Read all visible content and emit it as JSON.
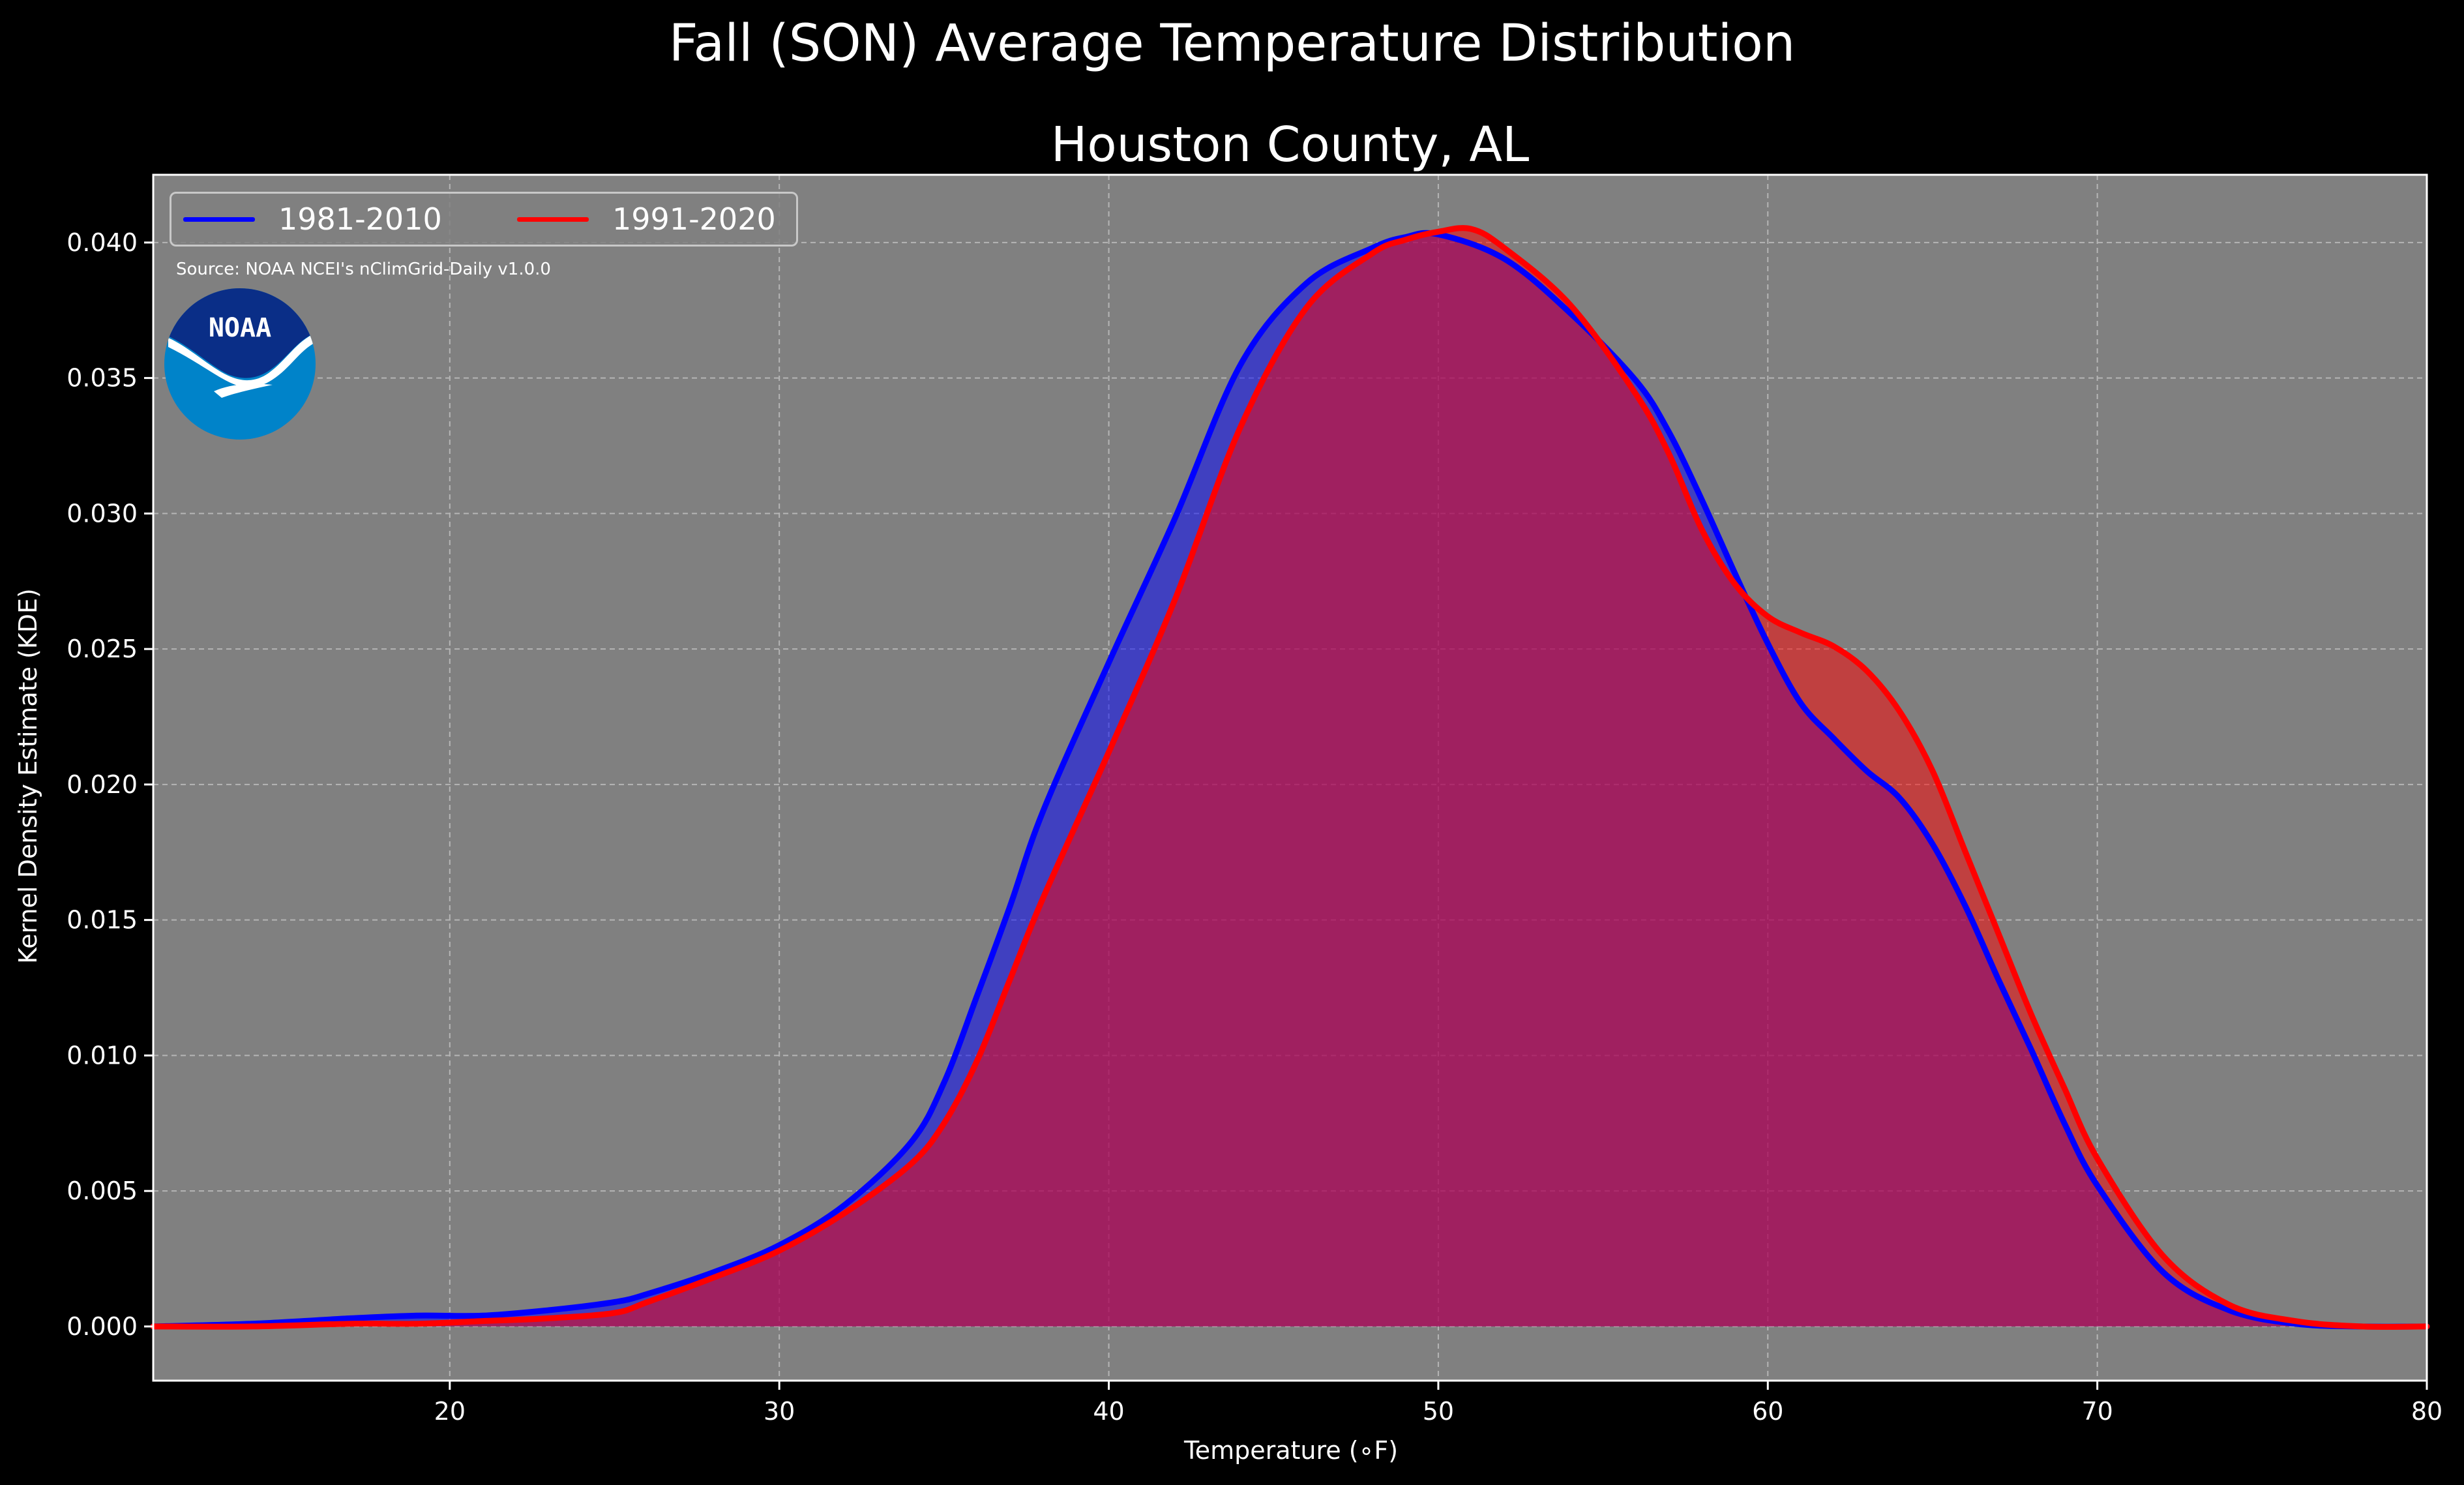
{
  "title": "Fall (SON) Average Temperature Distribution",
  "subtitle": "Houston County, AL",
  "source": "Source: NOAA NCEI's nClimGrid-Daily v1.0.0",
  "logo_text": "NOAA",
  "colors": {
    "background": "#000000",
    "plot_bg": "#808080",
    "series_1981": "#0000ff",
    "series_1991": "#ff0000",
    "logo_dark": "#0a2e87",
    "logo_light": "#0083c9"
  },
  "chart_data": {
    "type": "area",
    "title": "Fall (SON) Average Temperature Distribution",
    "subtitle": "Houston County, AL",
    "xlabel": "Temperature ($^\\circ$F)",
    "xlabel_display": "Temperature (∘F)",
    "ylabel": "Kernel Density Estimate (KDE)",
    "xlim": [
      11,
      80
    ],
    "ylim": [
      -0.002,
      0.0425
    ],
    "xticks": [
      20,
      30,
      40,
      50,
      60,
      70,
      80
    ],
    "yticks": [
      0.0,
      0.005,
      0.01,
      0.015,
      0.02,
      0.025,
      0.03,
      0.035,
      0.04
    ],
    "ytick_labels": [
      "0.000",
      "0.005",
      "0.010",
      "0.015",
      "0.020",
      "0.025",
      "0.030",
      "0.035",
      "0.040"
    ],
    "grid": true,
    "legend_position": "top-left",
    "series": [
      {
        "name": "1981-2010",
        "color": "#0000ff",
        "x": [
          11,
          14,
          17,
          19,
          21,
          23,
          25,
          26,
          28,
          30,
          32,
          34,
          35,
          36,
          37,
          38,
          40,
          42,
          44,
          46,
          48,
          49,
          50,
          52,
          54,
          56,
          57,
          58,
          59,
          60,
          61,
          62,
          63,
          64,
          65,
          66,
          67,
          68,
          69,
          70,
          72,
          74,
          76,
          78,
          80
        ],
        "y": [
          0.0,
          0.0001,
          0.0003,
          0.0004,
          0.0004,
          0.0006,
          0.0009,
          0.0012,
          0.002,
          0.003,
          0.0045,
          0.0068,
          0.009,
          0.0122,
          0.0155,
          0.019,
          0.0245,
          0.0298,
          0.0355,
          0.0385,
          0.0398,
          0.0402,
          0.0403,
          0.0394,
          0.0374,
          0.0349,
          0.033,
          0.0305,
          0.0278,
          0.0252,
          0.023,
          0.0217,
          0.0205,
          0.0195,
          0.0178,
          0.0155,
          0.0128,
          0.0102,
          0.0075,
          0.0052,
          0.002,
          0.0006,
          0.0001,
          0.0,
          0.0
        ]
      },
      {
        "name": "1991-2020",
        "color": "#ff0000",
        "x": [
          11,
          14,
          17,
          19,
          21,
          23,
          25,
          26,
          28,
          30,
          32,
          34,
          35,
          36,
          37,
          38,
          40,
          42,
          44,
          46,
          48,
          49,
          50,
          51,
          52,
          54,
          56,
          57,
          58,
          59,
          60,
          61,
          62,
          63,
          64,
          65,
          66,
          67,
          68,
          69,
          70,
          72,
          74,
          76,
          78,
          80
        ],
        "y": [
          0.0,
          0.0,
          0.0001,
          0.0001,
          0.0002,
          0.0003,
          0.0005,
          0.0009,
          0.0018,
          0.0028,
          0.0042,
          0.006,
          0.0075,
          0.0098,
          0.0128,
          0.0158,
          0.0212,
          0.0268,
          0.0332,
          0.0376,
          0.0396,
          0.0401,
          0.0404,
          0.0405,
          0.0398,
          0.0377,
          0.0344,
          0.0322,
          0.0294,
          0.0274,
          0.0262,
          0.0256,
          0.0251,
          0.0242,
          0.0227,
          0.0205,
          0.0175,
          0.0145,
          0.0115,
          0.0088,
          0.0062,
          0.0026,
          0.0008,
          0.0002,
          0.0,
          0.0
        ]
      }
    ]
  }
}
